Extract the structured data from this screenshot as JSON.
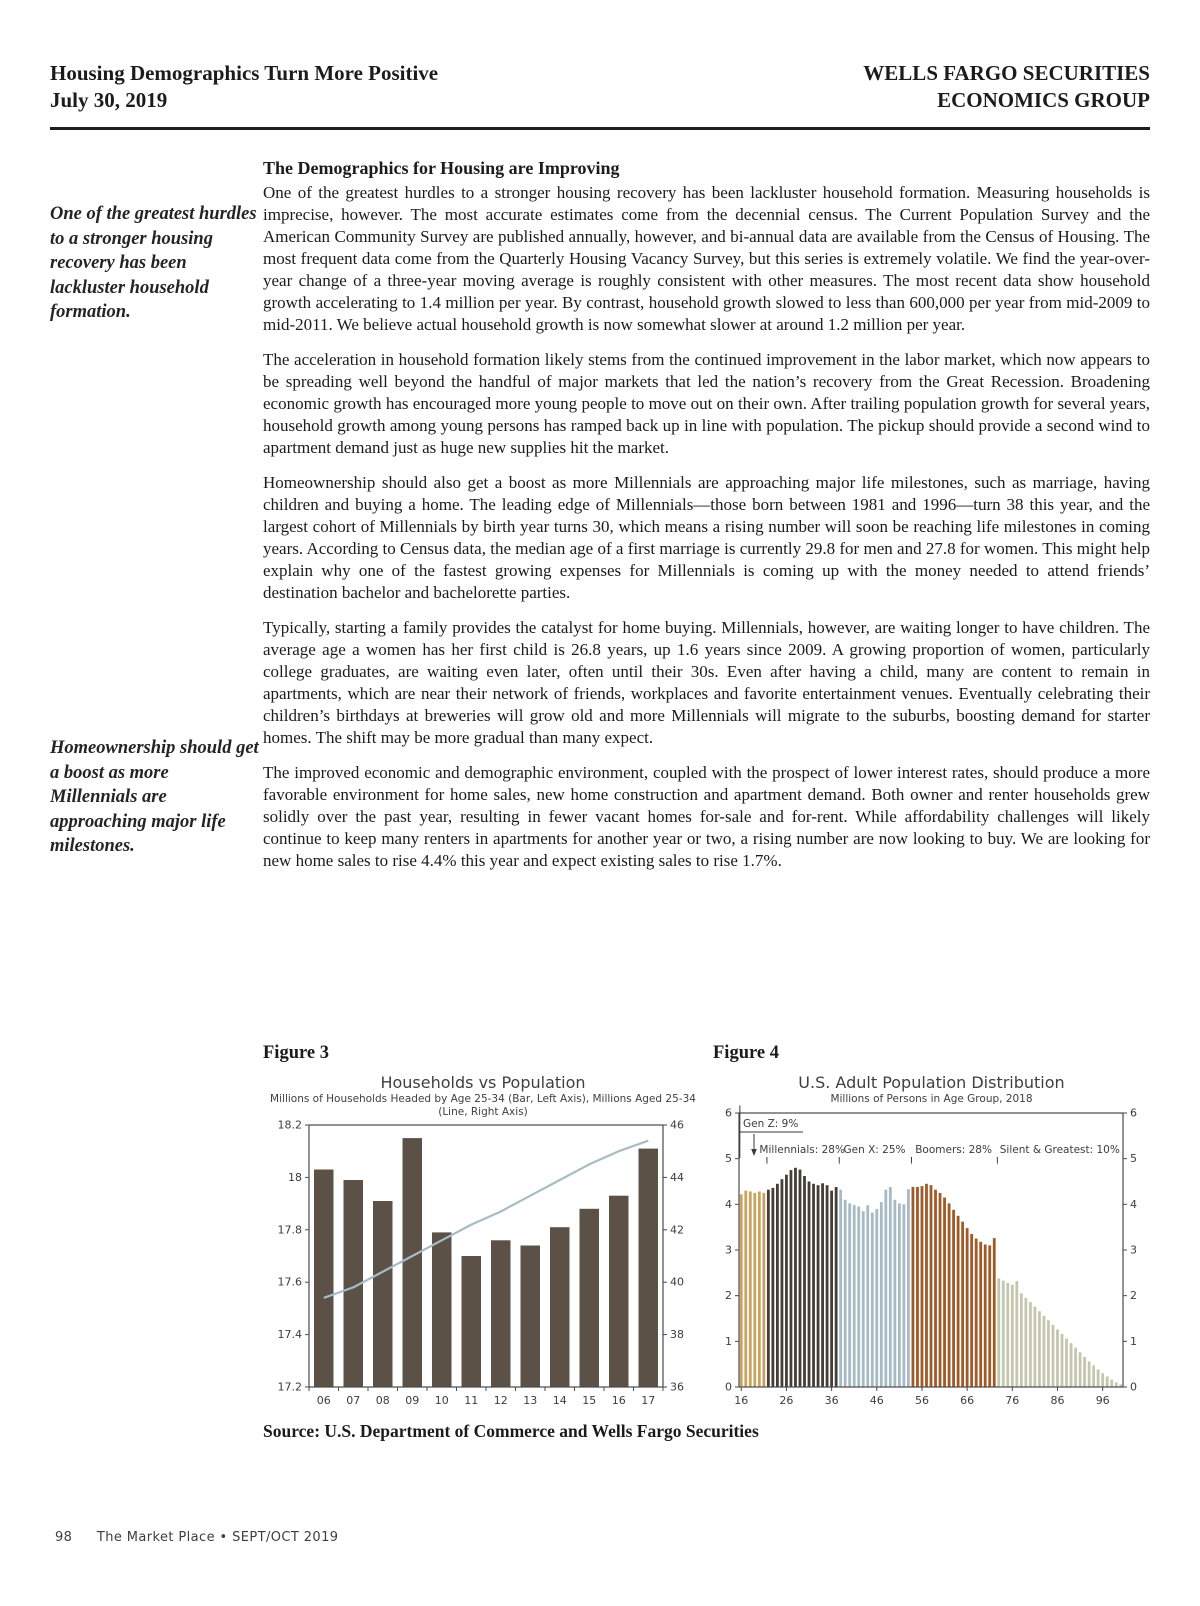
{
  "header": {
    "title": "Housing Demographics Turn More Positive",
    "date": "July 30, 2019",
    "brand_line1": "WELLS FARGO SECURITIES",
    "brand_line2": "ECONOMICS GROUP"
  },
  "article": {
    "heading": "The Demographics for Housing are Improving",
    "pull_quotes": [
      "One of the greatest hurdles to a stronger housing recovery has been lackluster household formation.",
      "Homeownership should get a boost as more Millennials are approaching major life milestones."
    ],
    "paragraphs": [
      "One of the greatest hurdles to a stronger housing recovery has been lackluster household formation. Measuring households is imprecise, however. The most accurate estimates come from the decennial census. The Current Population Survey and the American Community Survey are published annually, however, and bi-annual data are available from the Census of Housing. The most frequent data come from the Quarterly Housing Vacancy Survey, but this series is extremely volatile. We find the year-over-year change of a three-year moving average is roughly consistent with other measures. The most recent data show household growth accelerating to 1.4 million per year. By contrast, household growth slowed to less than 600,000 per year from mid-2009 to mid-2011. We believe actual household growth is now somewhat slower at around 1.2 million per year.",
      "The acceleration in household formation likely stems from the continued improvement in the labor market, which now appears to be spreading well beyond the handful of major markets that led the nation’s recovery from the Great Recession. Broadening economic growth has encouraged more young people to move out on their own. After trailing population growth for several years, household growth among young persons has ramped back up in line with population. The pickup should provide a second wind to apartment demand just as huge new supplies hit the market.",
      "Homeownership should also get a boost as more Millennials are approaching major life milestones, such as marriage, having children and buying a home. The leading edge of Millennials—those born between 1981 and 1996—turn 38 this year, and the largest cohort of Millennials by birth year turns 30, which means a rising number will soon be reaching life milestones in coming years. According to Census data, the median age of a first marriage is currently 29.8 for men and 27.8 for women. This might help explain why one of the fastest growing expenses for Millennials is coming up with the money needed to attend friends’ destination bachelor and bachelorette parties.",
      "Typically, starting a family provides the catalyst for home buying. Millennials, however, are waiting longer to have children. The average age a women has her first child is 26.8 years, up 1.6 years since 2009. A growing proportion of women, particularly college graduates, are waiting even later, often until their 30s. Even after having a child, many are content to remain in apartments, which are near their network of friends, workplaces and favorite entertainment venues. Eventually celebrating their children’s birthdays at breweries will grow old and more Millennials will migrate to the suburbs, boosting demand for starter homes. The shift may be more gradual than many expect.",
      "The improved economic and demographic environment, coupled with the prospect of lower interest rates, should produce a more favorable environment for home sales, new home construction and apartment demand. Both owner and renter households grew solidly over the past year, resulting in fewer vacant homes for-sale and for-rent. While affordability challenges will likely continue to keep many renters in apartments for another year or two, a rising number are now looking to buy. We are looking for new home sales to rise 4.4% this year and expect existing sales to rise 1.7%."
    ]
  },
  "figures": {
    "figure3_label": "Figure 3",
    "figure4_label": "Figure 4",
    "source": "Source: U.S. Department of Commerce and Wells Fargo Securities"
  },
  "footer": {
    "page_number": "98",
    "publication": "The Market Place • SEPT/OCT 2019"
  },
  "chart_data": [
    {
      "id": "figure3",
      "type": "bar",
      "title": "Households vs Population",
      "subtitle": "Millions of Households Headed by Age 25-34 (Bar, Left Axis), Millions Aged 25-34 (Line, Right Axis)",
      "categories": [
        "06",
        "07",
        "08",
        "09",
        "10",
        "11",
        "12",
        "13",
        "14",
        "15",
        "16",
        "17"
      ],
      "series": [
        {
          "name": "Households headed by age 25-34 (bar, left axis)",
          "type": "bar",
          "axis": "left",
          "color": "#5c5146",
          "values": [
            18.03,
            17.99,
            17.91,
            18.15,
            17.79,
            17.7,
            17.76,
            17.74,
            17.81,
            17.88,
            17.93,
            18.11
          ]
        },
        {
          "name": "Population aged 25-34 (line, right axis)",
          "type": "line",
          "axis": "right",
          "color": "#a7bcc4",
          "values": [
            39.4,
            39.8,
            40.4,
            41.0,
            41.6,
            42.2,
            42.7,
            43.3,
            43.9,
            44.5,
            45.0,
            45.4
          ]
        }
      ],
      "left_axis": {
        "min": 17.2,
        "max": 18.2,
        "ticks": [
          17.2,
          17.4,
          17.6,
          17.8,
          18,
          18.2
        ]
      },
      "right_axis": {
        "min": 36,
        "max": 46,
        "ticks": [
          36,
          38,
          40,
          42,
          44,
          46
        ]
      },
      "grid": false,
      "legend": "none"
    },
    {
      "id": "figure4",
      "type": "bar",
      "title": "U.S. Adult Population Distribution",
      "subtitle": "Millions of Persons in Age Group, 2018",
      "age_min": 16,
      "age_max": 100,
      "ylim": [
        0,
        6
      ],
      "y_ticks": [
        0,
        1,
        2,
        3,
        4,
        5,
        6
      ],
      "x_label_ticks": [
        16,
        26,
        36,
        46,
        56,
        66,
        76,
        86,
        96
      ],
      "groups": [
        {
          "label": "Gen Z: 9%",
          "ages": [
            16,
            21
          ],
          "color": "#c9a35e"
        },
        {
          "label": "Millennials: 28%",
          "ages": [
            22,
            37
          ],
          "color": "#463e36"
        },
        {
          "label": "Gen X: 25%",
          "ages": [
            38,
            53
          ],
          "color": "#a5bac5"
        },
        {
          "label": "Boomers: 28%",
          "ages": [
            54,
            72
          ],
          "color": "#a05a28"
        },
        {
          "label": "Silent & Greatest: 10%",
          "ages": [
            73,
            100
          ],
          "color": "#c4c6ad"
        }
      ],
      "values": [
        4.22,
        4.3,
        4.28,
        4.25,
        4.28,
        4.25,
        4.32,
        4.36,
        4.45,
        4.55,
        4.65,
        4.75,
        4.8,
        4.76,
        4.62,
        4.5,
        4.45,
        4.42,
        4.46,
        4.42,
        4.3,
        4.38,
        4.32,
        4.1,
        4.02,
        3.98,
        3.95,
        3.85,
        3.98,
        3.82,
        3.9,
        4.05,
        4.32,
        4.38,
        4.1,
        4.02,
        4.0,
        4.33,
        4.38,
        4.38,
        4.4,
        4.45,
        4.42,
        4.32,
        4.25,
        4.15,
        4.02,
        3.88,
        3.75,
        3.62,
        3.48,
        3.35,
        3.25,
        3.18,
        3.12,
        3.1,
        3.26,
        2.38,
        2.33,
        2.28,
        2.24,
        2.32,
        2.05,
        1.95,
        1.86,
        1.76,
        1.66,
        1.56,
        1.46,
        1.36,
        1.26,
        1.16,
        1.06,
        0.96,
        0.86,
        0.76,
        0.66,
        0.56,
        0.47,
        0.38,
        0.3,
        0.23,
        0.16,
        0.1,
        0.06
      ],
      "grid": false,
      "legend": "none"
    }
  ]
}
